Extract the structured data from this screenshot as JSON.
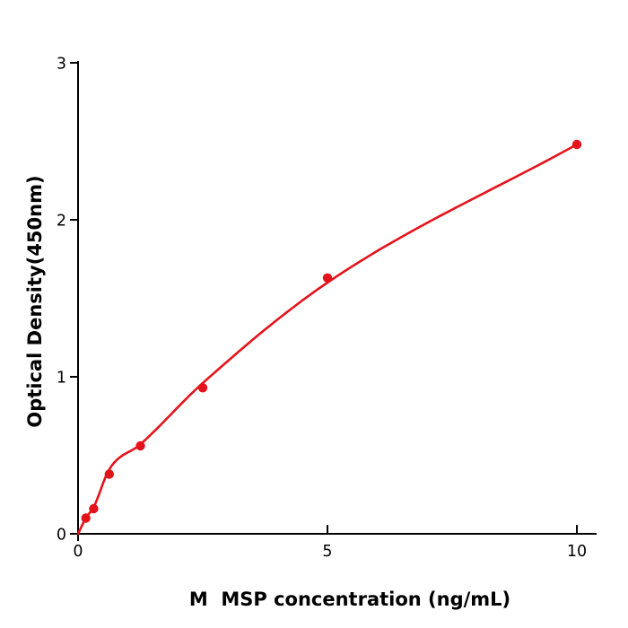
{
  "figure": {
    "background": "#ffffff",
    "axis_color": "#000000",
    "text_color": "#000000",
    "accent_red": "#e4131b"
  },
  "chart_data": {
    "type": "scatter",
    "title": "",
    "xlabel": "M  MSP concentration (ng/mL)",
    "ylabel": "Optical Density(450nm)",
    "xlim": [
      0,
      10.4
    ],
    "ylim": [
      0,
      3
    ],
    "xticks": [
      0,
      5,
      10
    ],
    "xtick_labels": [
      "0",
      "5",
      "10"
    ],
    "yticks": [
      0,
      1,
      2,
      3
    ],
    "ytick_labels": [
      "0",
      "1",
      "2",
      "3"
    ],
    "grid": false,
    "legend": null,
    "series": [
      {
        "name": "fitted standard curve",
        "type": "line",
        "color": "#e4131b",
        "points": [
          [
            0,
            0.0
          ],
          [
            0.156,
            0.1
          ],
          [
            0.313,
            0.17
          ],
          [
            0.625,
            0.41
          ],
          [
            1.25,
            0.57
          ],
          [
            2.5,
            0.96
          ],
          [
            5,
            1.6
          ],
          [
            10,
            2.48
          ]
        ]
      },
      {
        "name": "standard data points",
        "type": "scatter",
        "marker": "circle",
        "color": "#e4131b",
        "points": [
          [
            0.156,
            0.1
          ],
          [
            0.313,
            0.16
          ],
          [
            0.625,
            0.38
          ],
          [
            1.25,
            0.56
          ],
          [
            2.5,
            0.93
          ],
          [
            5,
            1.63
          ],
          [
            10,
            2.48
          ]
        ]
      }
    ]
  }
}
